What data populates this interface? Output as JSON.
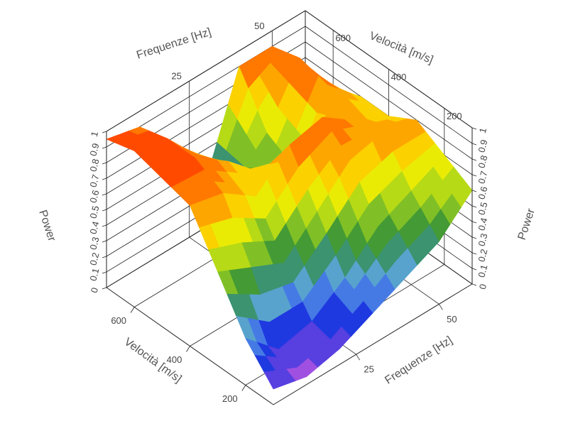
{
  "chart_data": {
    "type": "surface",
    "x_label": "Frequenze [Hz]",
    "y_label": "Velocità [m/s]",
    "z_label": "Power",
    "x": [
      0,
      10,
      20,
      30,
      40,
      50,
      60
    ],
    "y": [
      100,
      200,
      300,
      400,
      500,
      600,
      700
    ],
    "z": [
      [
        0.1,
        0.05,
        0.1,
        0.2,
        0.3,
        0.4,
        0.6
      ],
      [
        0.3,
        0.1,
        0.15,
        0.3,
        0.5,
        0.6,
        0.7
      ],
      [
        0.6,
        0.5,
        0.4,
        0.6,
        0.8,
        0.85,
        0.8
      ],
      [
        0.9,
        0.85,
        0.7,
        0.9,
        0.95,
        0.8,
        0.7
      ],
      [
        0.95,
        0.95,
        0.8,
        0.6,
        0.5,
        0.9,
        0.7
      ],
      [
        1,
        0.95,
        0.7,
        0.4,
        0.6,
        0.95,
        0.6
      ],
      [
        0.95,
        0.9,
        0.5,
        0.3,
        0.9,
        0.9,
        0.5
      ]
    ],
    "xlim": [
      0,
      60
    ],
    "ylim": [
      100,
      700
    ],
    "zlim": [
      0,
      1
    ],
    "xticks": [
      25,
      50
    ],
    "yticks": [
      200,
      400,
      600
    ],
    "zticks": [
      0,
      0.1,
      0.2,
      0.3,
      0.4,
      0.5,
      0.6,
      0.7,
      0.8,
      0.9,
      1
    ],
    "colorscale": [
      "#a050e0",
      "#1a30e0",
      "#60a8e8",
      "#2a8a3a",
      "#9ad020",
      "#f8f000",
      "#ffa000",
      "#ff4a00"
    ],
    "grid": true
  }
}
